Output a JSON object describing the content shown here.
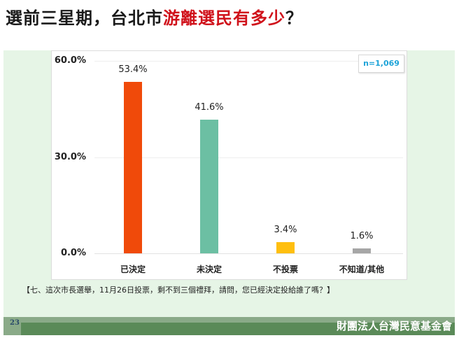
{
  "title": {
    "part1": "選前三星期，台北市",
    "highlight": "游離選民有多少",
    "part2": "？",
    "highlight_color": "#d0121b"
  },
  "sample_size": "n=1,069",
  "question": "【七、這次市長選舉，11月26日投票，剩不到三個禮拜，請問，您已經決定投給誰了嗎？】",
  "footer": {
    "page_number": "23",
    "organization": "財團法人台灣民意基金會"
  },
  "chart_data": {
    "type": "bar",
    "title": "選前三星期，台北市游離選民有多少？",
    "xlabel": "",
    "ylabel": "",
    "categories": [
      "已決定",
      "未決定",
      "不投票",
      "不知道/其他"
    ],
    "values": [
      53.4,
      41.6,
      3.4,
      1.6
    ],
    "value_labels": [
      "53.4%",
      "41.6%",
      "3.4%",
      "1.6%"
    ],
    "colors": [
      "#f04a0a",
      "#6cbfa3",
      "#ffbf0f",
      "#a6a6a6"
    ],
    "ylim": [
      0,
      60
    ],
    "yticks": [
      "0.0%",
      "30.0%",
      "60.0%"
    ],
    "grid": true,
    "legend": "none",
    "annotation": "n=1,069"
  }
}
